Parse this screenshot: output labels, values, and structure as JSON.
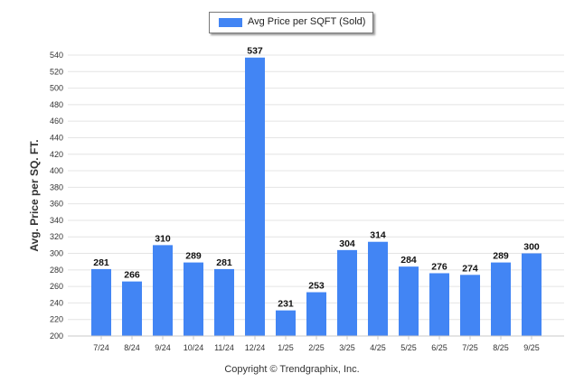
{
  "chart_data": {
    "type": "bar",
    "categories": [
      "7/24",
      "8/24",
      "9/24",
      "10/24",
      "11/24",
      "12/24",
      "1/25",
      "2/25",
      "3/25",
      "4/25",
      "5/25",
      "6/25",
      "7/25",
      "8/25",
      "9/25"
    ],
    "series": [
      {
        "name": "Avg Price per SQFT (Sold)",
        "color": "#4285f4",
        "values": [
          281,
          266,
          310,
          289,
          281,
          537,
          231,
          253,
          304,
          314,
          284,
          276,
          274,
          289,
          300
        ]
      }
    ],
    "ylabel": "Avg. Price per SQ. FT.",
    "xlabel": "",
    "ylim": [
      200,
      540
    ],
    "yticks": [
      200,
      220,
      240,
      260,
      280,
      300,
      320,
      340,
      360,
      380,
      400,
      420,
      440,
      460,
      480,
      500,
      520,
      540
    ],
    "grid": true,
    "legend": "top-center"
  },
  "legend": {
    "label": "Avg Price per SQFT (Sold)",
    "color": "#4285f4"
  },
  "footer": {
    "copyright": "Copyright © Trendgraphix, Inc."
  }
}
